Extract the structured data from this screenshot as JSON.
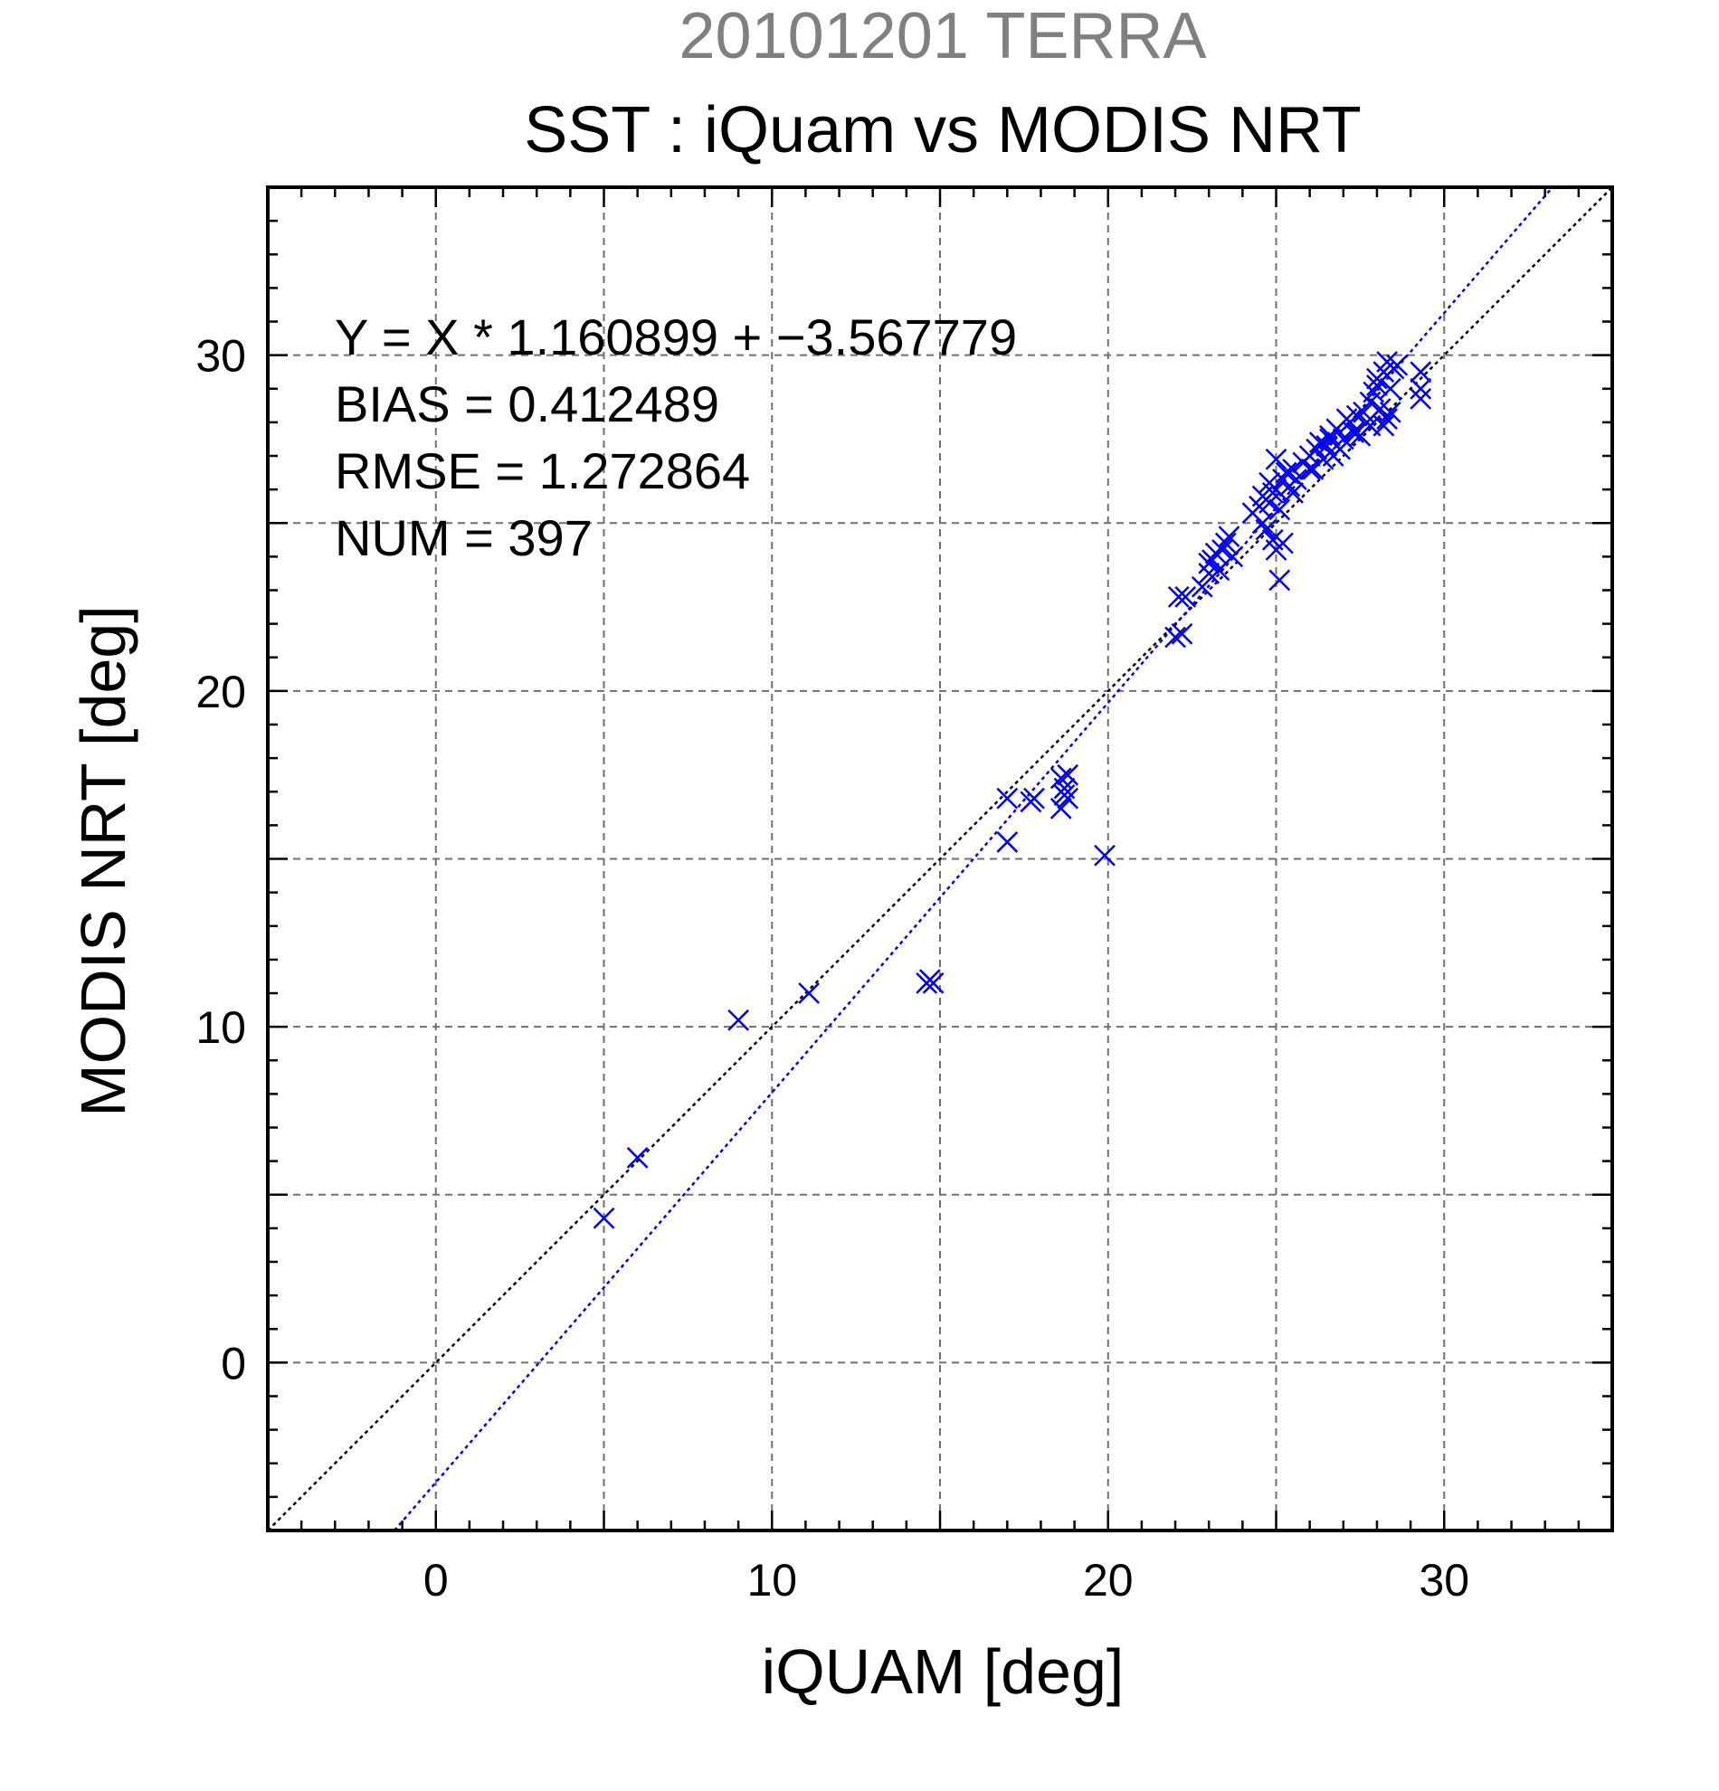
{
  "chart_data": {
    "type": "scatter",
    "suptitle": "20101201 TERRA",
    "title": "SST : iQuam vs MODIS NRT",
    "xlabel": "iQUAM [deg]",
    "ylabel": "MODIS NRT [deg]",
    "xlim": [
      -5,
      35
    ],
    "ylim": [
      -5,
      35
    ],
    "x_ticks": [
      0,
      10,
      20,
      30
    ],
    "y_ticks": [
      0,
      10,
      20,
      30
    ],
    "x_tick_labels": [
      "0",
      "10",
      "20",
      "30"
    ],
    "y_tick_labels": [
      "0",
      "10",
      "20",
      "30"
    ],
    "grid": true,
    "marker": "x",
    "marker_color": "#0000ff",
    "annotations": [
      "Y = X * 1.160899 + −3.567779",
      "BIAS = 0.412489",
      "RMSE = 1.272864",
      "NUM = 397"
    ],
    "lines": [
      {
        "slope": 1,
        "intercept": 0,
        "color": "#000000",
        "style": "dotted"
      },
      {
        "slope": 1.160899,
        "intercept": -3.567779,
        "color": "#0000ff",
        "style": "dotted"
      }
    ],
    "series": [
      {
        "color": "#0000ff",
        "points": [
          [
            5.0,
            4.3
          ],
          [
            6.0,
            6.1
          ],
          [
            9.0,
            10.2
          ],
          [
            11.1,
            11.0
          ],
          [
            14.6,
            11.3
          ],
          [
            14.8,
            11.3
          ],
          [
            14.7,
            11.4
          ],
          [
            17.0,
            15.5
          ],
          [
            17.0,
            16.8
          ],
          [
            17.7,
            16.7
          ],
          [
            17.8,
            16.8
          ],
          [
            18.6,
            17.4
          ],
          [
            18.7,
            17.1
          ],
          [
            18.8,
            17.5
          ],
          [
            18.6,
            16.5
          ],
          [
            18.8,
            16.8
          ],
          [
            18.7,
            16.9
          ],
          [
            19.9,
            15.1
          ],
          [
            22.0,
            21.6
          ],
          [
            22.2,
            21.7
          ],
          [
            22.1,
            22.8
          ],
          [
            22.3,
            22.8
          ],
          [
            22.8,
            23.1
          ],
          [
            23.0,
            23.5
          ],
          [
            23.1,
            23.9
          ],
          [
            23.2,
            24.1
          ],
          [
            23.0,
            23.8
          ],
          [
            23.4,
            24.2
          ],
          [
            23.5,
            24.4
          ],
          [
            23.3,
            23.6
          ],
          [
            23.7,
            24.0
          ],
          [
            23.6,
            24.6
          ],
          [
            24.3,
            25.3
          ],
          [
            24.5,
            25.5
          ],
          [
            24.6,
            25.8
          ],
          [
            24.8,
            25.6
          ],
          [
            24.6,
            25.0
          ],
          [
            24.7,
            24.8
          ],
          [
            24.9,
            25.9
          ],
          [
            25.0,
            26.0
          ],
          [
            25.1,
            25.4
          ],
          [
            24.8,
            26.2
          ],
          [
            25.2,
            26.3
          ],
          [
            24.9,
            24.5
          ],
          [
            25.0,
            24.2
          ],
          [
            25.2,
            24.4
          ],
          [
            25.1,
            23.3
          ],
          [
            25.0,
            26.9
          ],
          [
            25.3,
            26.5
          ],
          [
            25.4,
            26.1
          ],
          [
            25.5,
            26.6
          ],
          [
            25.6,
            26.3
          ],
          [
            25.8,
            26.8
          ],
          [
            26.0,
            27.0
          ],
          [
            26.2,
            27.2
          ],
          [
            26.1,
            26.6
          ],
          [
            26.3,
            27.4
          ],
          [
            26.5,
            27.3
          ],
          [
            26.6,
            27.6
          ],
          [
            26.4,
            26.9
          ],
          [
            26.7,
            27.0
          ],
          [
            26.8,
            27.8
          ],
          [
            27.0,
            27.5
          ],
          [
            27.1,
            28.1
          ],
          [
            26.9,
            27.2
          ],
          [
            27.3,
            27.7
          ],
          [
            27.4,
            28.2
          ],
          [
            27.2,
            28.0
          ],
          [
            27.5,
            27.6
          ],
          [
            27.6,
            28.3
          ],
          [
            27.8,
            28.6
          ],
          [
            27.7,
            28.0
          ],
          [
            27.9,
            28.9
          ],
          [
            28.0,
            29.1
          ],
          [
            28.1,
            28.4
          ],
          [
            28.0,
            29.3
          ],
          [
            28.2,
            29.5
          ],
          [
            28.3,
            28.1
          ],
          [
            28.4,
            29.0
          ],
          [
            28.5,
            29.6
          ],
          [
            28.6,
            29.7
          ],
          [
            28.4,
            28.3
          ],
          [
            28.3,
            29.8
          ],
          [
            28.2,
            27.9
          ],
          [
            29.3,
            29.5
          ],
          [
            29.3,
            29.0
          ],
          [
            29.3,
            28.7
          ],
          [
            27.8,
            27.9
          ],
          [
            27.4,
            27.7
          ],
          [
            26.6,
            27.5
          ],
          [
            26.0,
            26.6
          ],
          [
            25.5,
            25.9
          ]
        ]
      }
    ]
  }
}
